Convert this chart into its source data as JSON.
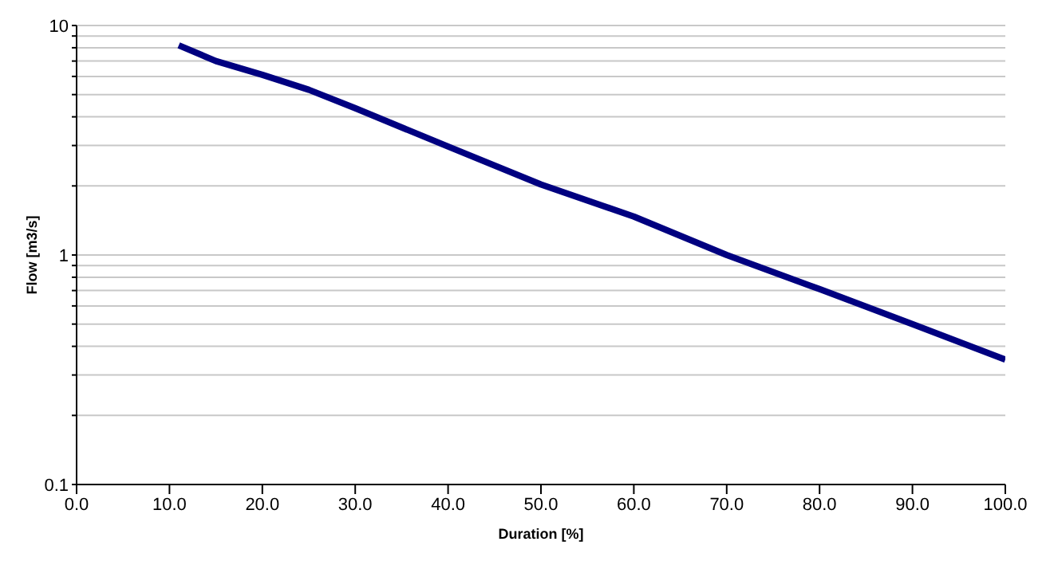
{
  "chart_data": {
    "type": "line",
    "xlabel": "Duration [%]",
    "ylabel": "Flow [m3/s]",
    "series": [
      {
        "color": "#000080",
        "x": [
          11,
          15,
          20,
          25,
          30,
          40,
          50,
          60,
          70,
          80,
          90,
          100
        ],
        "values": [
          8.2,
          7,
          6.1,
          5.25,
          4.36,
          2.97,
          2.03,
          1.47,
          1.0,
          0.71,
          0.5,
          0.35
        ]
      }
    ],
    "xlim": [
      0,
      100
    ],
    "xticks": [
      {
        "value": 0,
        "label": "0.0"
      },
      {
        "value": 10,
        "label": "10.0"
      },
      {
        "value": 20,
        "label": "20.0"
      },
      {
        "value": 30,
        "label": "30.0"
      },
      {
        "value": 40,
        "label": "40.0"
      },
      {
        "value": 50,
        "label": "50.0"
      },
      {
        "value": 60,
        "label": "60.0"
      },
      {
        "value": 70,
        "label": "70.0"
      },
      {
        "value": 80,
        "label": "80.0"
      },
      {
        "value": 90,
        "label": "90.0"
      },
      {
        "value": 100,
        "label": "100.0"
      }
    ],
    "ylim": [
      0.1,
      10
    ],
    "yticks": [
      0.1,
      {
        "value": 0.2,
        "label": null
      },
      {
        "value": 0.3,
        "label": null
      },
      {
        "value": 0.4,
        "label": null
      },
      {
        "value": 0.5,
        "label": null
      },
      {
        "value": 0.6,
        "label": null
      },
      {
        "value": 0.7,
        "label": null
      },
      {
        "value": 0.8,
        "label": null
      },
      {
        "value": 0.9,
        "label": null
      },
      1,
      {
        "value": 2,
        "label": null
      },
      {
        "value": 3,
        "label": null
      },
      {
        "value": 4,
        "label": null
      },
      {
        "value": 5,
        "label": null
      },
      {
        "value": 6,
        "label": null
      },
      {
        "value": 7,
        "label": null
      },
      {
        "value": 8,
        "label": null
      },
      {
        "value": 9,
        "label": null
      },
      10
    ],
    "log": "y",
    "grid": "y",
    "marker": "none",
    "line_style": "solid"
  }
}
